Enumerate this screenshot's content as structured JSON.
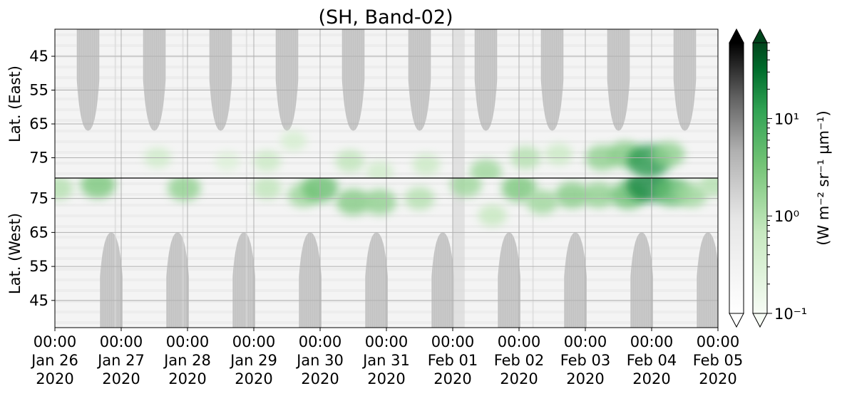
{
  "chart_data": {
    "type": "heatmap",
    "title": "(SH, Band-02)",
    "panels": [
      {
        "name": "east",
        "ylabel": "Lat. (East)",
        "y_ticks": [
          45,
          55,
          65,
          75
        ],
        "y_tick_labels": [
          "45",
          "55",
          "65",
          "75"
        ],
        "ylim": [
          37,
          81
        ]
      },
      {
        "name": "west",
        "ylabel": "Lat. (West)",
        "y_ticks": [
          75,
          65,
          55,
          45
        ],
        "y_tick_labels": [
          "75",
          "65",
          "55",
          "45"
        ],
        "ylim": [
          81,
          37
        ]
      }
    ],
    "x_tick_labels": [
      [
        "00:00",
        "Jan 26",
        "2020"
      ],
      [
        "00:00",
        "Jan 27",
        "2020"
      ],
      [
        "00:00",
        "Jan 28",
        "2020"
      ],
      [
        "00:00",
        "Jan 29",
        "2020"
      ],
      [
        "00:00",
        "Jan 30",
        "2020"
      ],
      [
        "00:00",
        "Jan 31",
        "2020"
      ],
      [
        "00:00",
        "Feb 01",
        "2020"
      ],
      [
        "00:00",
        "Feb 02",
        "2020"
      ],
      [
        "00:00",
        "Feb 03",
        "2020"
      ],
      [
        "00:00",
        "Feb 04",
        "2020"
      ],
      [
        "00:00",
        "Feb 05",
        "2020"
      ]
    ],
    "xlim": [
      "2020-01-26 00:00",
      "2020-02-05 00:00"
    ],
    "grid": true,
    "colorbars": [
      {
        "cmap": "Greys",
        "color_low": "#ffffff",
        "color_high": "#000000",
        "extend": "both"
      },
      {
        "cmap": "Greens",
        "color_low": "#f7fcf5",
        "color_high": "#00441b",
        "extend": "both",
        "scale": "log",
        "label": "(W m⁻² sr⁻¹ μm⁻¹)",
        "ticks": [
          0.1,
          1,
          10
        ],
        "tick_labels": [
          "10⁻¹",
          "10⁰",
          "10¹"
        ],
        "range": [
          0.1,
          60
        ]
      }
    ],
    "night_mask": {
      "color": "#c8c8c8",
      "east_days": [
        0.5,
        1.5,
        2.5,
        3.5,
        4.5,
        5.5,
        6.5,
        7.5,
        8.5,
        9.5
      ],
      "west_days": [
        0.85,
        1.85,
        2.85,
        3.85,
        4.85,
        5.85,
        6.85,
        7.85,
        8.85,
        9.85
      ]
    },
    "emission_blobs": [
      {
        "panel": "east",
        "day": 1.55,
        "lat": 75,
        "value": 0.5
      },
      {
        "panel": "east",
        "day": 2.6,
        "lat": 76,
        "value": 0.3
      },
      {
        "panel": "east",
        "day": 3.2,
        "lat": 76,
        "value": 0.6
      },
      {
        "panel": "east",
        "day": 3.6,
        "lat": 70,
        "value": 0.4
      },
      {
        "panel": "east",
        "day": 4.45,
        "lat": 76,
        "value": 0.8
      },
      {
        "panel": "east",
        "day": 4.9,
        "lat": 79,
        "value": 0.5
      },
      {
        "panel": "east",
        "day": 5.6,
        "lat": 77,
        "value": 0.6
      },
      {
        "panel": "east",
        "day": 6.5,
        "lat": 79,
        "value": 1.5
      },
      {
        "panel": "east",
        "day": 7.1,
        "lat": 75,
        "value": 1.0
      },
      {
        "panel": "east",
        "day": 7.6,
        "lat": 74,
        "value": 0.6
      },
      {
        "panel": "east",
        "day": 8.25,
        "lat": 75,
        "value": 2.0
      },
      {
        "panel": "east",
        "day": 8.6,
        "lat": 74,
        "value": 2.5
      },
      {
        "panel": "east",
        "day": 8.95,
        "lat": 76,
        "value": 15.0
      },
      {
        "panel": "east",
        "day": 9.25,
        "lat": 74,
        "value": 2.0
      },
      {
        "panel": "west",
        "day": 0.05,
        "lat": 78,
        "value": 1.0
      },
      {
        "panel": "west",
        "day": 0.65,
        "lat": 79,
        "value": 3.0
      },
      {
        "panel": "west",
        "day": 1.95,
        "lat": 78,
        "value": 2.0
      },
      {
        "panel": "west",
        "day": 3.2,
        "lat": 78,
        "value": 0.8
      },
      {
        "panel": "west",
        "day": 3.75,
        "lat": 76,
        "value": 1.5
      },
      {
        "panel": "west",
        "day": 4.0,
        "lat": 78,
        "value": 4.0
      },
      {
        "panel": "west",
        "day": 4.5,
        "lat": 74,
        "value": 2.5
      },
      {
        "panel": "west",
        "day": 4.9,
        "lat": 74,
        "value": 2.0
      },
      {
        "panel": "west",
        "day": 5.5,
        "lat": 75,
        "value": 1.0
      },
      {
        "panel": "west",
        "day": 6.2,
        "lat": 79,
        "value": 1.5
      },
      {
        "panel": "west",
        "day": 6.6,
        "lat": 70,
        "value": 0.7
      },
      {
        "panel": "west",
        "day": 7.0,
        "lat": 78,
        "value": 3.0
      },
      {
        "panel": "west",
        "day": 7.35,
        "lat": 74,
        "value": 1.5
      },
      {
        "panel": "west",
        "day": 7.8,
        "lat": 76,
        "value": 2.5
      },
      {
        "panel": "west",
        "day": 8.2,
        "lat": 76,
        "value": 2.0
      },
      {
        "panel": "west",
        "day": 8.65,
        "lat": 76,
        "value": 4.0
      },
      {
        "panel": "west",
        "day": 8.95,
        "lat": 79,
        "value": 20.0
      },
      {
        "panel": "west",
        "day": 9.3,
        "lat": 77,
        "value": 5.0
      },
      {
        "panel": "west",
        "day": 9.6,
        "lat": 76,
        "value": 1.5
      },
      {
        "panel": "west",
        "day": 9.95,
        "lat": 79,
        "value": 1.0
      }
    ]
  }
}
